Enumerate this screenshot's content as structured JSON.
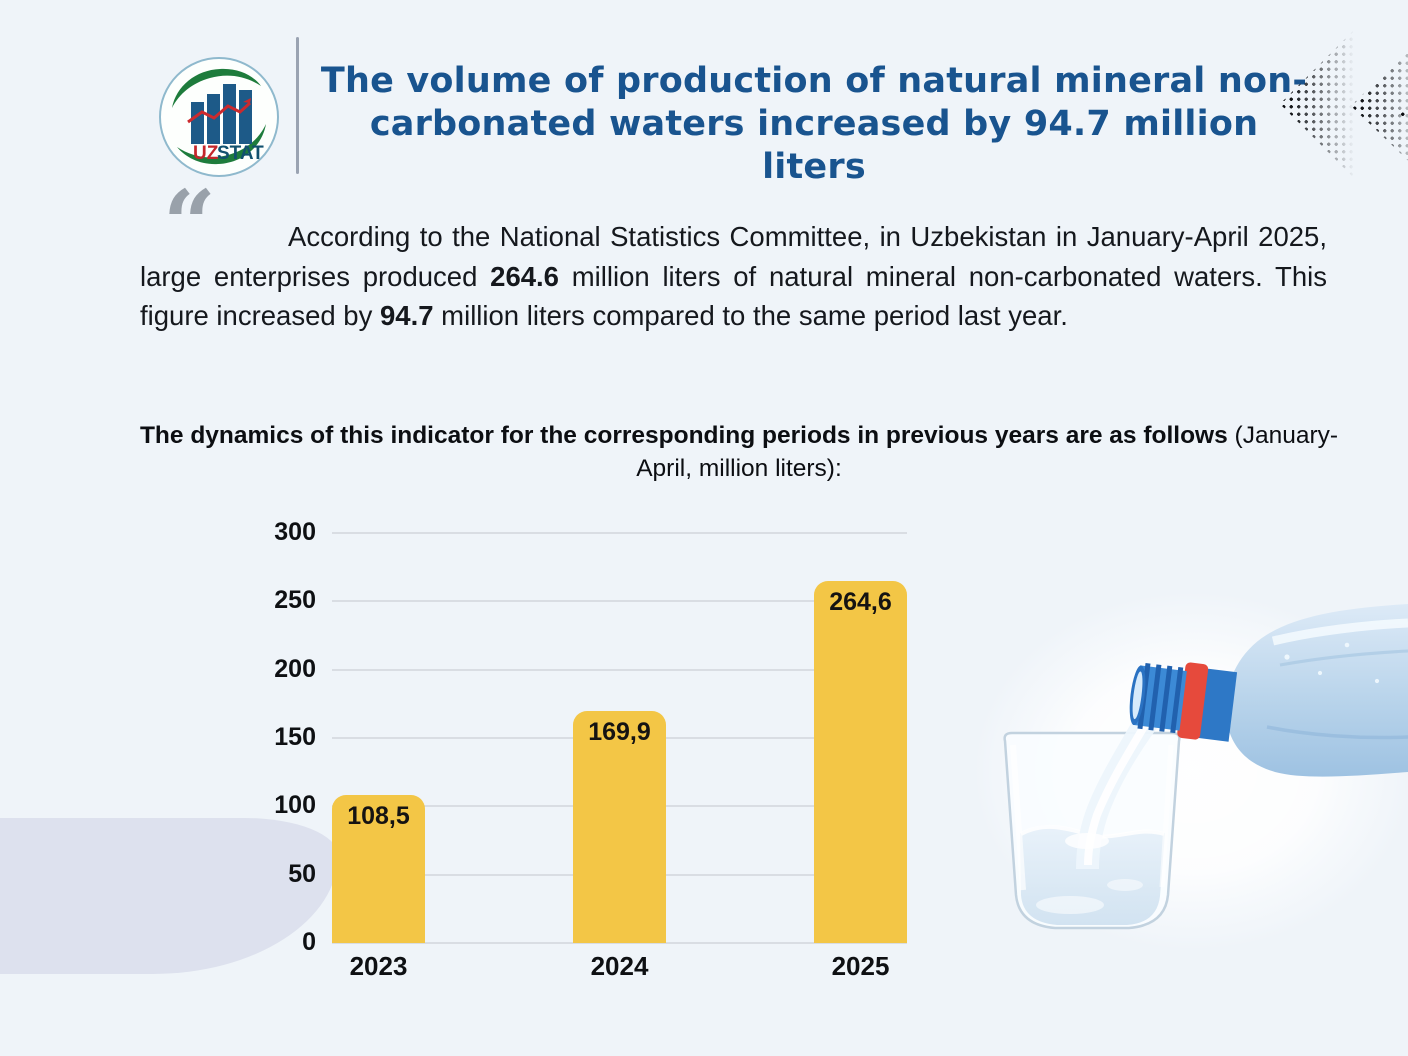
{
  "page": {
    "background_color": "#eff4f9"
  },
  "header": {
    "logo": {
      "icon": "uzstat-logo",
      "brand_uz": "UZ",
      "brand_stat": "STAT"
    },
    "title_lines": [
      "The volume of production of natural mineral non-",
      "carbonated waters increased by 94.7 million liters"
    ],
    "title_color": "#19548f"
  },
  "lead": {
    "quote_glyph": "“",
    "parts": [
      "According to the National Statistics Committee, in Uzbekistan in January-April 2025, large enterprises produced ",
      "264.6",
      " million liters of natural mineral non-carbonated waters. This figure increased by ",
      "94.7",
      " million liters compared to the same period last year."
    ]
  },
  "chart_heading": {
    "bold": "The dynamics of this indicator for the corresponding periods in previous years are as follows",
    "regular": " (January-April, million liters):"
  },
  "chart_data": {
    "type": "bar",
    "title": "The dynamics of this indicator for the corresponding periods in previous years are as follows (January-April, million liters)",
    "categories": [
      "2023",
      "2024",
      "2025"
    ],
    "values": [
      108.5,
      169.9,
      264.6
    ],
    "value_labels": [
      "108,5",
      "169,9",
      "264,6"
    ],
    "xlabel": "",
    "ylabel": "",
    "ylim": [
      0,
      300
    ],
    "yticks": [
      0,
      50,
      100,
      150,
      200,
      250,
      300
    ],
    "grid": true,
    "legend": "none",
    "bar_color": "#f3c646",
    "unit": "million liters",
    "period": "January-April"
  },
  "decor": {
    "top_right": "dotted-chevron-left-icons",
    "bottom_left": "lavender-corner-shape",
    "photo": "bottle-pouring-water-into-glass-photo"
  }
}
